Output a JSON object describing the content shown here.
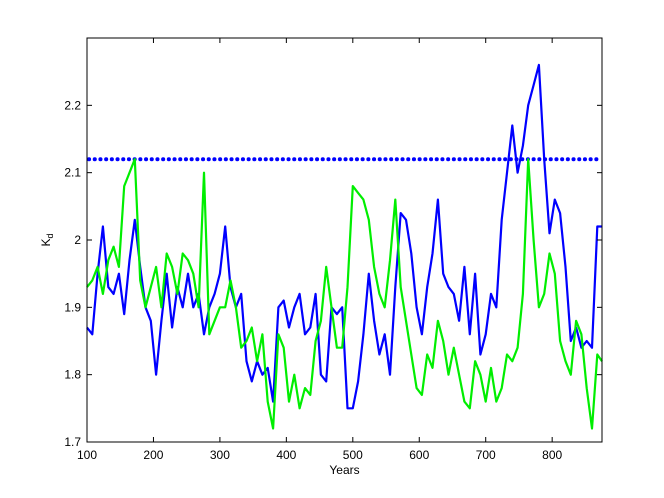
{
  "chart_data": {
    "type": "line",
    "title": "",
    "xlabel": "Years",
    "ylabel": "K",
    "ylabel_subscript": "d",
    "xlim": [
      100,
      875
    ],
    "ylim": [
      1.7,
      2.3
    ],
    "x_ticks": [
      100,
      200,
      300,
      400,
      500,
      600,
      700,
      800
    ],
    "y_ticks": [
      1.7,
      1.8,
      1.9,
      2.0,
      2.1,
      2.2
    ],
    "y_tick_labels": [
      "1.7",
      "1.8",
      "1.9",
      "2",
      "2.1",
      "2.2"
    ],
    "grid": false,
    "legend": "none",
    "threshold": {
      "y": 2.12,
      "style": "dotted",
      "color": "#0000ff"
    },
    "series": [
      {
        "color": "#0000ff",
        "x": [
          100,
          108,
          116,
          124,
          132,
          140,
          148,
          156,
          164,
          172,
          180,
          188,
          196,
          204,
          212,
          220,
          228,
          236,
          244,
          252,
          260,
          268,
          276,
          284,
          292,
          300,
          308,
          316,
          324,
          332,
          340,
          348,
          356,
          364,
          372,
          380,
          388,
          396,
          404,
          412,
          420,
          428,
          436,
          444,
          452,
          460,
          468,
          476,
          484,
          492,
          500,
          508,
          516,
          524,
          532,
          540,
          548,
          556,
          564,
          572,
          580,
          588,
          596,
          604,
          612,
          620,
          628,
          636,
          644,
          652,
          660,
          668,
          676,
          684,
          692,
          700,
          708,
          716,
          724,
          732,
          740,
          748,
          756,
          764,
          772,
          780,
          788,
          796,
          804,
          812,
          820,
          828,
          836,
          844,
          852,
          860,
          868,
          875
        ],
        "y": [
          1.87,
          1.86,
          1.95,
          2.02,
          1.93,
          1.92,
          1.95,
          1.89,
          1.97,
          2.03,
          1.96,
          1.9,
          1.88,
          1.8,
          1.88,
          1.95,
          1.87,
          1.93,
          1.9,
          1.95,
          1.9,
          1.92,
          1.86,
          1.9,
          1.92,
          1.95,
          2.02,
          1.93,
          1.9,
          1.92,
          1.82,
          1.79,
          1.82,
          1.8,
          1.81,
          1.76,
          1.9,
          1.91,
          1.87,
          1.9,
          1.92,
          1.86,
          1.87,
          1.92,
          1.8,
          1.79,
          1.9,
          1.89,
          1.9,
          1.75,
          1.75,
          1.79,
          1.86,
          1.95,
          1.88,
          1.83,
          1.86,
          1.8,
          1.93,
          2.04,
          2.03,
          1.98,
          1.9,
          1.86,
          1.93,
          1.98,
          2.06,
          1.95,
          1.93,
          1.92,
          1.88,
          1.96,
          1.86,
          1.95,
          1.83,
          1.86,
          1.92,
          1.9,
          2.03,
          2.1,
          2.17,
          2.1,
          2.14,
          2.2,
          2.23,
          2.26,
          2.12,
          2.01,
          2.06,
          2.04,
          1.96,
          1.85,
          1.87,
          1.84,
          1.85,
          1.84,
          2.02,
          2.02
        ]
      },
      {
        "color": "#00ee00",
        "x": [
          100,
          108,
          116,
          124,
          132,
          140,
          148,
          156,
          164,
          172,
          180,
          188,
          196,
          204,
          212,
          220,
          228,
          236,
          244,
          252,
          260,
          268,
          276,
          284,
          292,
          300,
          308,
          316,
          324,
          332,
          340,
          348,
          356,
          364,
          372,
          380,
          388,
          396,
          404,
          412,
          420,
          428,
          436,
          444,
          452,
          460,
          468,
          476,
          484,
          492,
          500,
          508,
          516,
          524,
          532,
          540,
          548,
          556,
          564,
          572,
          580,
          588,
          596,
          604,
          612,
          620,
          628,
          636,
          644,
          652,
          660,
          668,
          676,
          684,
          692,
          700,
          708,
          716,
          724,
          732,
          740,
          748,
          756,
          764,
          772,
          780,
          788,
          796,
          804,
          812,
          820,
          828,
          836,
          844,
          852,
          860,
          868,
          875
        ],
        "y": [
          1.93,
          1.94,
          1.96,
          1.92,
          1.97,
          1.99,
          1.96,
          2.08,
          2.1,
          2.12,
          1.94,
          1.9,
          1.93,
          1.96,
          1.9,
          1.98,
          1.96,
          1.92,
          1.98,
          1.97,
          1.95,
          1.9,
          2.1,
          1.86,
          1.88,
          1.9,
          1.9,
          1.94,
          1.9,
          1.84,
          1.85,
          1.87,
          1.82,
          1.86,
          1.76,
          1.72,
          1.86,
          1.84,
          1.76,
          1.8,
          1.75,
          1.78,
          1.77,
          1.85,
          1.88,
          1.96,
          1.9,
          1.84,
          1.84,
          1.93,
          2.08,
          2.07,
          2.06,
          2.03,
          1.96,
          1.92,
          1.9,
          1.97,
          2.06,
          1.93,
          1.88,
          1.83,
          1.78,
          1.77,
          1.83,
          1.81,
          1.88,
          1.85,
          1.8,
          1.84,
          1.8,
          1.76,
          1.75,
          1.82,
          1.8,
          1.76,
          1.81,
          1.76,
          1.78,
          1.83,
          1.82,
          1.84,
          1.92,
          2.12,
          2.0,
          1.9,
          1.92,
          1.98,
          1.95,
          1.85,
          1.82,
          1.8,
          1.88,
          1.86,
          1.78,
          1.72,
          1.83,
          1.82
        ]
      }
    ]
  }
}
